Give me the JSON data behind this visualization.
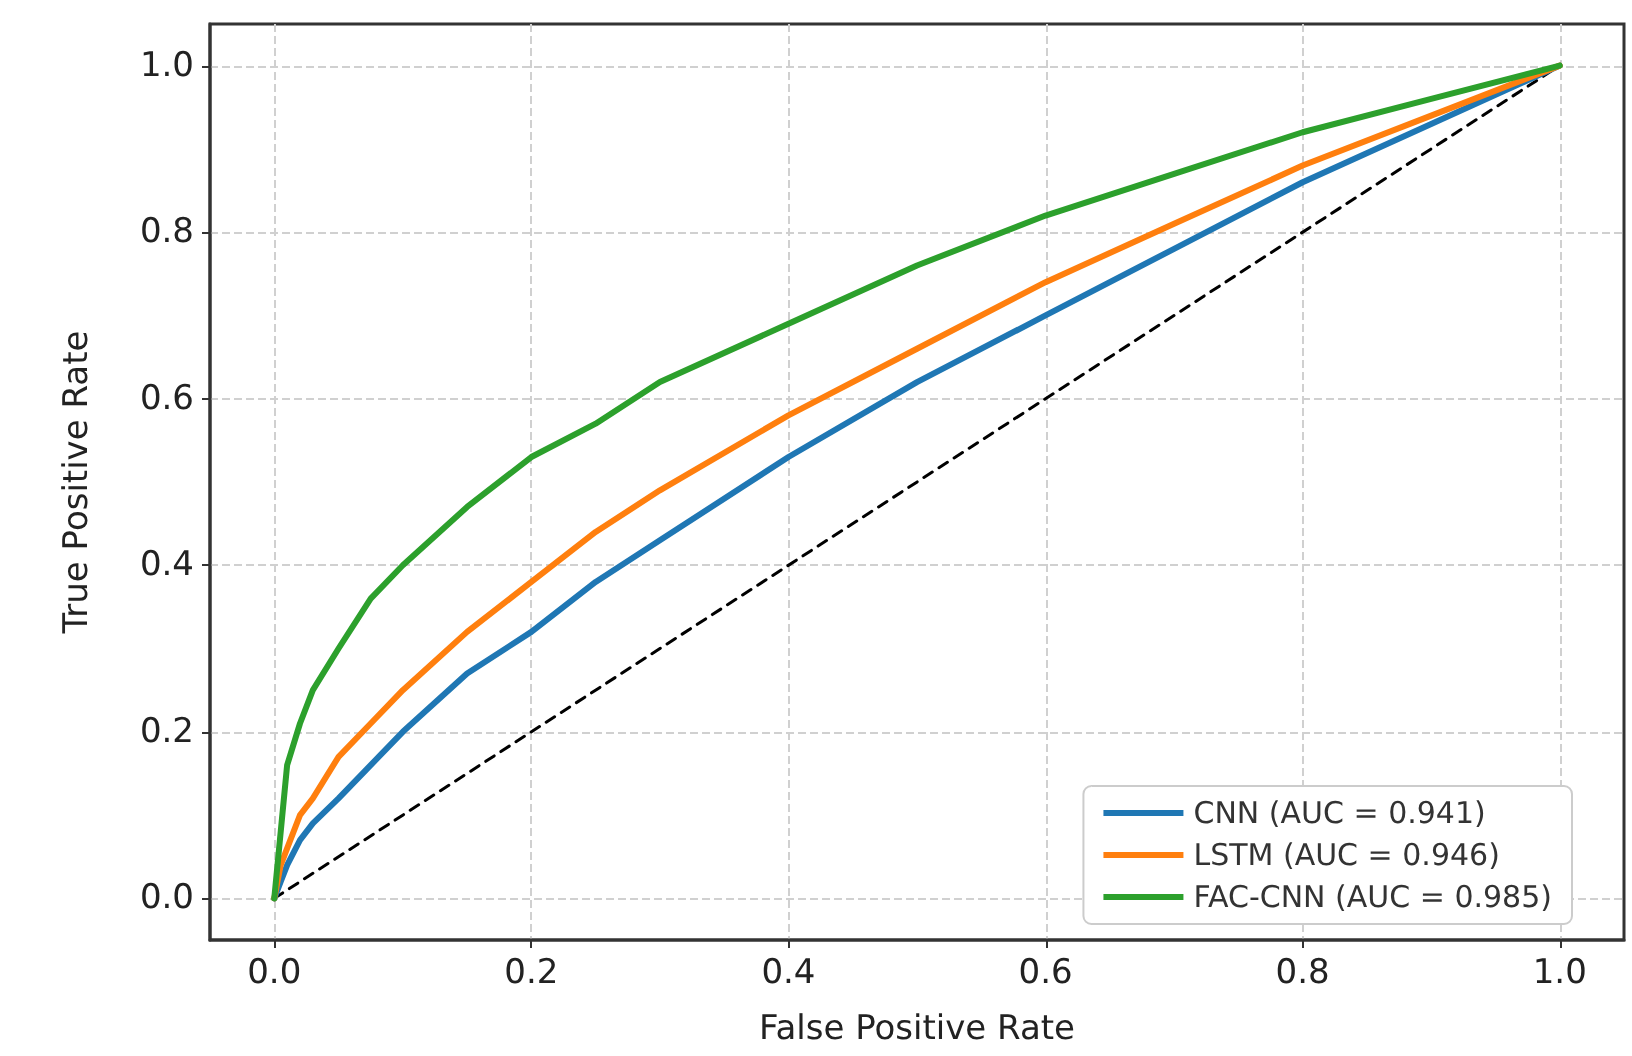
{
  "chart_data": {
    "type": "line",
    "xlabel": "False Positive Rate",
    "ylabel": "True Positive Rate",
    "xlim": [
      -0.05,
      1.05
    ],
    "ylim": [
      -0.05,
      1.05
    ],
    "xticks": [
      {
        "value": 0,
        "label": "0.0"
      },
      {
        "value": 0.2,
        "label": "0.2"
      },
      {
        "value": 0.4,
        "label": "0.4"
      },
      {
        "value": 0.6,
        "label": "0.6"
      },
      {
        "value": 0.8,
        "label": "0.8"
      },
      {
        "value": 1,
        "label": "1.0"
      }
    ],
    "yticks": [
      {
        "value": 0,
        "label": "0.0"
      },
      {
        "value": 0.2,
        "label": "0.2"
      },
      {
        "value": 0.4,
        "label": "0.4"
      },
      {
        "value": 0.6,
        "label": "0.6"
      },
      {
        "value": 0.8,
        "label": "0.8"
      },
      {
        "value": 1,
        "label": "1.0"
      }
    ],
    "grid": true,
    "legend": "bottom right",
    "marker": "none",
    "series": [
      {
        "name": "CNN (AUC = 0.941)",
        "color": "#1f77b4",
        "line_style": "solid",
        "x": [
          0,
          0.005,
          0.01,
          0.02,
          0.03,
          0.05,
          0.075,
          0.1,
          0.15,
          0.2,
          0.25,
          0.3,
          0.4,
          0.5,
          0.6,
          0.7,
          0.8,
          0.9,
          1
        ],
        "values": [
          0,
          0.02,
          0.04,
          0.07,
          0.09,
          0.12,
          0.16,
          0.2,
          0.27,
          0.32,
          0.38,
          0.43,
          0.53,
          0.62,
          0.7,
          0.78,
          0.86,
          0.93,
          1
        ]
      },
      {
        "name": "LSTM (AUC = 0.946)",
        "color": "#ff7f0e",
        "line_style": "solid",
        "x": [
          0,
          0.005,
          0.01,
          0.02,
          0.03,
          0.05,
          0.075,
          0.1,
          0.15,
          0.2,
          0.25,
          0.3,
          0.4,
          0.5,
          0.6,
          0.7,
          0.8,
          0.9,
          1
        ],
        "values": [
          0,
          0.04,
          0.06,
          0.1,
          0.12,
          0.17,
          0.21,
          0.25,
          0.32,
          0.38,
          0.44,
          0.49,
          0.58,
          0.66,
          0.74,
          0.81,
          0.88,
          0.94,
          1
        ]
      },
      {
        "name": "FAC-CNN (AUC = 0.985)",
        "color": "#2ca02c",
        "line_style": "solid",
        "x": [
          0,
          0.01,
          0.02,
          0.03,
          0.05,
          0.075,
          0.1,
          0.15,
          0.2,
          0.25,
          0.3,
          0.4,
          0.5,
          0.6,
          0.7,
          0.8,
          0.9,
          1
        ],
        "values": [
          0,
          0.16,
          0.21,
          0.25,
          0.3,
          0.36,
          0.4,
          0.47,
          0.53,
          0.57,
          0.62,
          0.69,
          0.76,
          0.82,
          0.87,
          0.92,
          0.96,
          1
        ]
      },
      {
        "color": "#000000",
        "line_style": "dashed",
        "x": [
          0,
          1
        ],
        "values": [
          0,
          1
        ]
      }
    ]
  }
}
